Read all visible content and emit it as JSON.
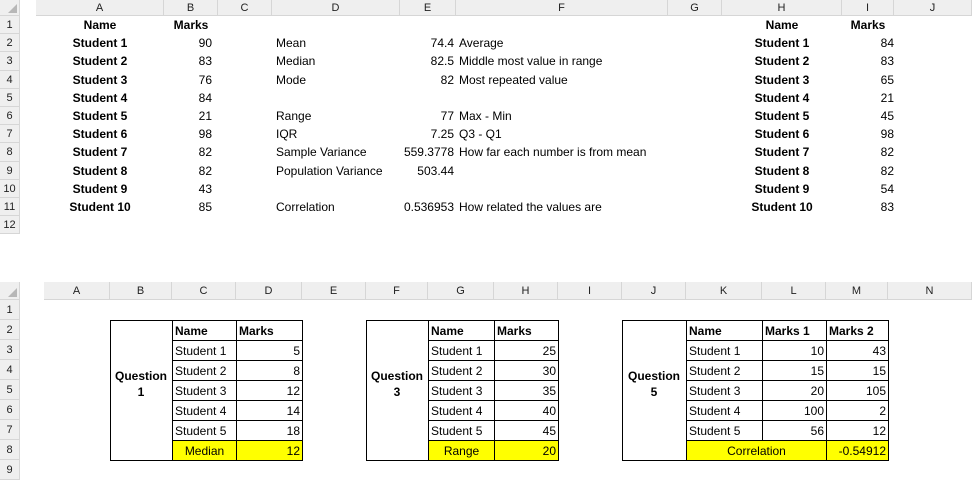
{
  "top": {
    "col_headers": [
      "A",
      "B",
      "C",
      "D",
      "E",
      "F",
      "G",
      "H",
      "I",
      "J"
    ],
    "row_headers": [
      "1",
      "2",
      "3",
      "4",
      "5",
      "6",
      "7",
      "8",
      "9",
      "10",
      "11",
      "12"
    ],
    "left_table": {
      "headers": [
        "Name",
        "Marks"
      ],
      "rows": [
        [
          "Student 1",
          "90"
        ],
        [
          "Student 2",
          "83"
        ],
        [
          "Student 3",
          "76"
        ],
        [
          "Student 4",
          "84"
        ],
        [
          "Student 5",
          "21"
        ],
        [
          "Student 6",
          "98"
        ],
        [
          "Student 7",
          "82"
        ],
        [
          "Student 8",
          "82"
        ],
        [
          "Student 9",
          "43"
        ],
        [
          "Student 10",
          "85"
        ]
      ]
    },
    "stats": [
      {
        "row": 1,
        "label": "Mean",
        "value": "74.4",
        "note": "Average"
      },
      {
        "row": 2,
        "label": "Median",
        "value": "82.5",
        "note": "Middle most value in range"
      },
      {
        "row": 3,
        "label": "Mode",
        "value": "82",
        "note": "Most repeated value"
      },
      {
        "row": 5,
        "label": "Range",
        "value": "77",
        "note": "Max - Min"
      },
      {
        "row": 6,
        "label": "IQR",
        "value": "7.25",
        "note": "Q3 - Q1"
      },
      {
        "row": 7,
        "label": "Sample Variance",
        "value": "559.3778",
        "note": "How far each number is from mean"
      },
      {
        "row": 8,
        "label": "Population Variance",
        "value": "503.44",
        "note": ""
      },
      {
        "row": 10,
        "label": "Correlation",
        "value": "0.536953",
        "note": "How related the values are"
      }
    ],
    "right_table": {
      "headers": [
        "Name",
        "Marks"
      ],
      "rows": [
        [
          "Student 1",
          "84"
        ],
        [
          "Student 2",
          "83"
        ],
        [
          "Student 3",
          "65"
        ],
        [
          "Student 4",
          "21"
        ],
        [
          "Student 5",
          "45"
        ],
        [
          "Student 6",
          "98"
        ],
        [
          "Student 7",
          "82"
        ],
        [
          "Student 8",
          "82"
        ],
        [
          "Student 9",
          "54"
        ],
        [
          "Student 10",
          "83"
        ]
      ]
    }
  },
  "bottom": {
    "col_headers": [
      "A",
      "B",
      "C",
      "D",
      "E",
      "F",
      "G",
      "H",
      "I",
      "J",
      "K",
      "L",
      "M",
      "N"
    ],
    "row_headers": [
      "1",
      "2",
      "3",
      "4",
      "5",
      "6",
      "7",
      "8",
      "9"
    ],
    "q1": {
      "label_line1": "Question",
      "label_line2": "1",
      "headers": [
        "Name",
        "Marks"
      ],
      "rows": [
        [
          "Student 1",
          "5"
        ],
        [
          "Student 2",
          "8"
        ],
        [
          "Student 3",
          "12"
        ],
        [
          "Student 4",
          "14"
        ],
        [
          "Student 5",
          "18"
        ]
      ],
      "result_label": "Median",
      "result_value": "12"
    },
    "q3": {
      "label_line1": "Question",
      "label_line2": "3",
      "headers": [
        "Name",
        "Marks"
      ],
      "rows": [
        [
          "Student 1",
          "25"
        ],
        [
          "Student 2",
          "30"
        ],
        [
          "Student 3",
          "35"
        ],
        [
          "Student 4",
          "40"
        ],
        [
          "Student 5",
          "45"
        ]
      ],
      "result_label": "Range",
      "result_value": "20"
    },
    "q5": {
      "label_line1": "Question",
      "label_line2": "5",
      "headers": [
        "Name",
        "Marks 1",
        "Marks 2"
      ],
      "rows": [
        [
          "Student 1",
          "10",
          "43"
        ],
        [
          "Student 2",
          "15",
          "15"
        ],
        [
          "Student 3",
          "20",
          "105"
        ],
        [
          "Student 4",
          "100",
          "2"
        ],
        [
          "Student 5",
          "56",
          "12"
        ]
      ],
      "result_label": "Correlation",
      "result_value": "-0.54912"
    },
    "highlight_color": "#ffff00"
  }
}
